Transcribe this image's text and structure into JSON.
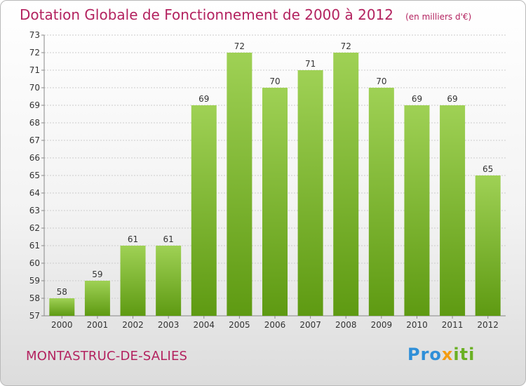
{
  "header": {
    "title": "Dotation Globale de Fonctionnement de 2000 à 2012",
    "unit": "(en milliers d'€)"
  },
  "footer": {
    "commune": "MONTASTRUC-DE-SALIES",
    "logo": "Proxiti"
  },
  "colors": {
    "title": "#b3225f",
    "bar_light": "#9fd155",
    "bar_dark": "#5e9a12",
    "grid": "#cccccc"
  },
  "chart_data": {
    "type": "bar",
    "title": "Dotation Globale de Fonctionnement de 2000 à 2012",
    "subtitle": "(en milliers d'€)",
    "categories": [
      "2000",
      "2001",
      "2002",
      "2003",
      "2004",
      "2005",
      "2006",
      "2007",
      "2008",
      "2009",
      "2010",
      "2011",
      "2012"
    ],
    "values": [
      58,
      59,
      61,
      61,
      69,
      72,
      70,
      71,
      72,
      70,
      69,
      69,
      65
    ],
    "ylim": [
      57,
      73
    ],
    "yticks": [
      57,
      58,
      59,
      60,
      61,
      62,
      63,
      64,
      65,
      66,
      67,
      68,
      69,
      70,
      71,
      72,
      73
    ],
    "grid": true,
    "xlabel": "",
    "ylabel": ""
  }
}
